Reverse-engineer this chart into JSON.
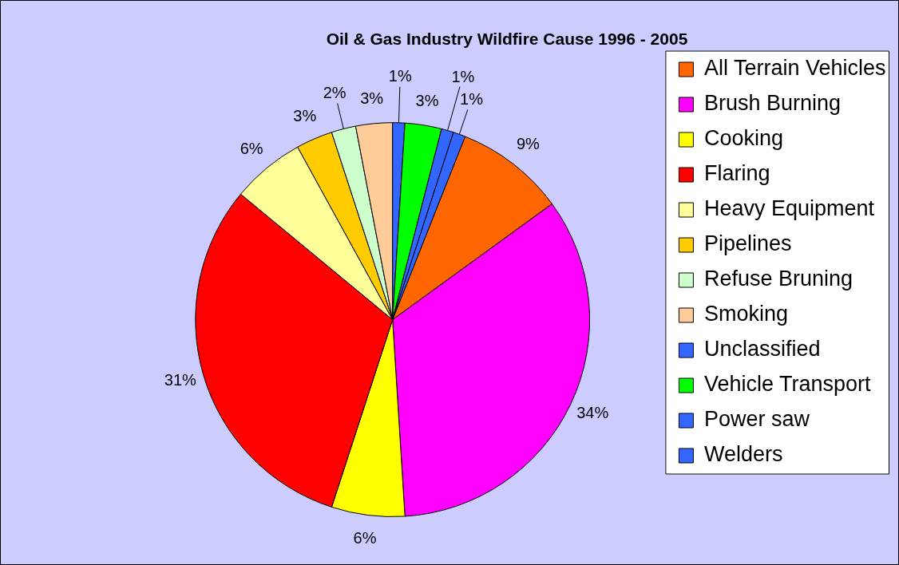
{
  "chart_data": {
    "type": "pie",
    "title": "Oil & Gas Industry Wildfire Cause 1996 - 2005",
    "categories": [
      "All Terrain Vehicles",
      "Brush Burning",
      "Cooking",
      "Flaring",
      "Heavy Equipment",
      "Pipelines",
      "Refuse Bruning",
      "Smoking",
      "Unclassified",
      "Vehicle Transport",
      "Power saw",
      "Welders"
    ],
    "values": [
      9,
      34,
      6,
      31,
      6,
      3,
      2,
      3,
      1,
      3,
      1,
      1
    ],
    "value_labels": [
      "9%",
      "34%",
      "6%",
      "31%",
      "6%",
      "3%",
      "2%",
      "3%",
      "1%",
      "3%",
      "1%",
      "1%"
    ],
    "colors": [
      "#ff6600",
      "#ff00ff",
      "#ffff00",
      "#ff0000",
      "#ffff99",
      "#ffcc00",
      "#ccffcc",
      "#ffcc99",
      "#3366ff",
      "#00ff00",
      "#3366ff",
      "#3366ff"
    ],
    "legend": "right"
  }
}
